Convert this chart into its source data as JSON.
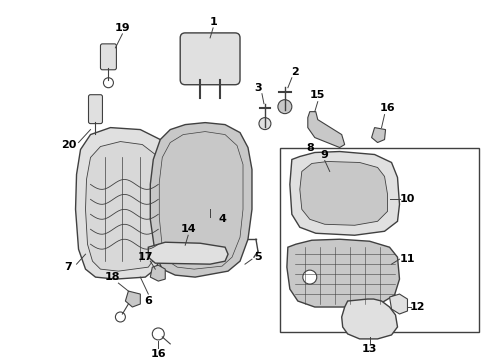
{
  "background_color": "#ffffff",
  "line_color": "#404040",
  "label_color": "#000000",
  "figsize": [
    4.9,
    3.6
  ],
  "dpi": 100
}
